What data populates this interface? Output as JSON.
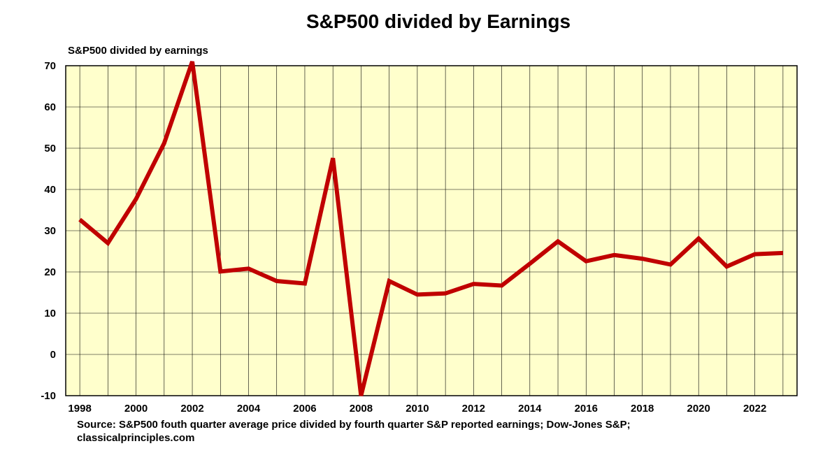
{
  "chart_data": {
    "type": "line",
    "title": "S&P500 divided by Earnings",
    "ylabel": "S&P500 divided by earnings",
    "xlabel": "",
    "source_lines": [
      "Source: S&P500 fouth quarter average price divided by fourth quarter S&P reported earnings; Dow-Jones S&P;",
      "classicalprinciples.com"
    ],
    "xlim": [
      1997.5,
      2023.5
    ],
    "ylim": [
      -10,
      70
    ],
    "x_ticks": [
      1998,
      2000,
      2002,
      2004,
      2006,
      2008,
      2010,
      2012,
      2014,
      2016,
      2018,
      2020,
      2022
    ],
    "y_ticks": [
      -10,
      0,
      10,
      20,
      30,
      40,
      50,
      60,
      70
    ],
    "grid": true,
    "x": [
      1998,
      1999,
      2000,
      2001,
      2002,
      2003,
      2004,
      2005,
      2006,
      2007,
      2008,
      2009,
      2010,
      2011,
      2012,
      2013,
      2014,
      2015,
      2016,
      2017,
      2018,
      2019,
      2020,
      2021,
      2022,
      2023
    ],
    "series": [
      {
        "values": [
          32.7,
          27.0,
          37.7,
          51.2,
          71.0,
          20.1,
          20.8,
          17.8,
          17.2,
          47.6,
          -10.0,
          17.8,
          14.5,
          14.8,
          17.1,
          16.7,
          22.0,
          27.4,
          22.6,
          24.1,
          23.2,
          21.8,
          28.1,
          21.3,
          24.3,
          24.6
        ],
        "color": "#c00000"
      }
    ],
    "colors": {
      "plot_background": "#ffffcc",
      "grid": "#000000",
      "line": "#c00000"
    }
  }
}
